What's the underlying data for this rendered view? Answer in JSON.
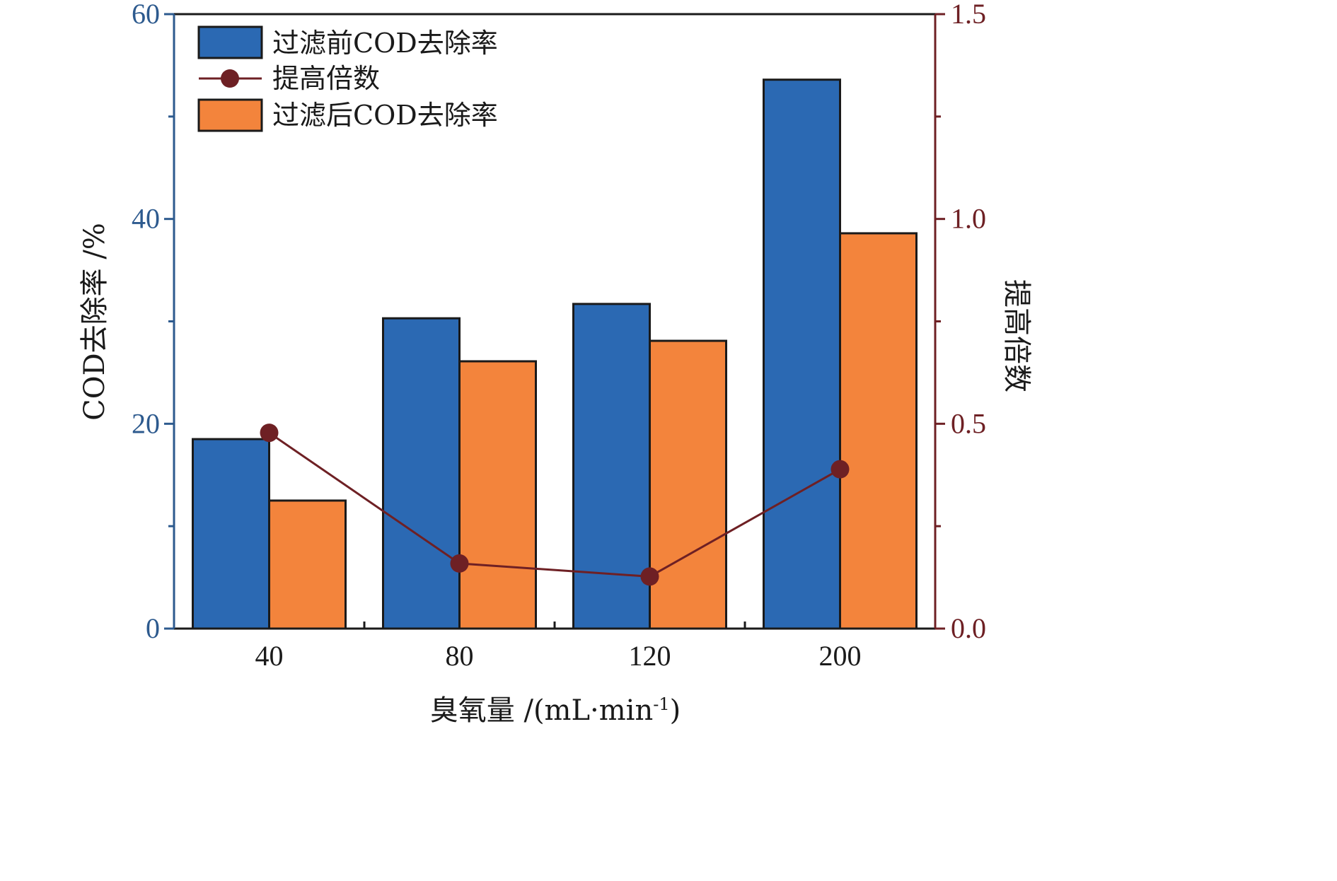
{
  "chart_data": {
    "type": "bar",
    "categories": [
      "40",
      "80",
      "120",
      "200"
    ],
    "series": [
      {
        "name": "过滤前COD去除率",
        "kind": "bar",
        "axis": "left",
        "color": "#2b69b3",
        "values": [
          18.5,
          30.3,
          31.7,
          53.6
        ]
      },
      {
        "name": "过滤后COD去除率",
        "kind": "bar",
        "axis": "left",
        "color": "#f3843c",
        "values": [
          12.5,
          26.1,
          28.1,
          38.6
        ]
      },
      {
        "name": "提高倍数",
        "kind": "line",
        "axis": "right",
        "color": "#6e2024",
        "values": [
          0.478,
          0.159,
          0.127,
          0.389
        ]
      }
    ],
    "xlabel_main": "臭氧量 /(mL·min",
    "xlabel_sup": "-1",
    "xlabel_close": ")",
    "ylabel": "COD去除率 /%",
    "y2label": "提高倍数",
    "ylim": [
      0,
      60
    ],
    "yticks": [
      "0",
      "20",
      "40",
      "60"
    ],
    "y2lim": [
      0,
      1.5
    ],
    "y2ticks": [
      "0.0",
      "0.5",
      "1.0",
      "1.5"
    ],
    "legend": {
      "position": "top-left"
    },
    "grid": false,
    "colors": {
      "left_axis": "#2d5a8e",
      "right_axis": "#6e2024",
      "frame": "#1a1a1a",
      "bar_edge": "#1a1a1a"
    }
  }
}
